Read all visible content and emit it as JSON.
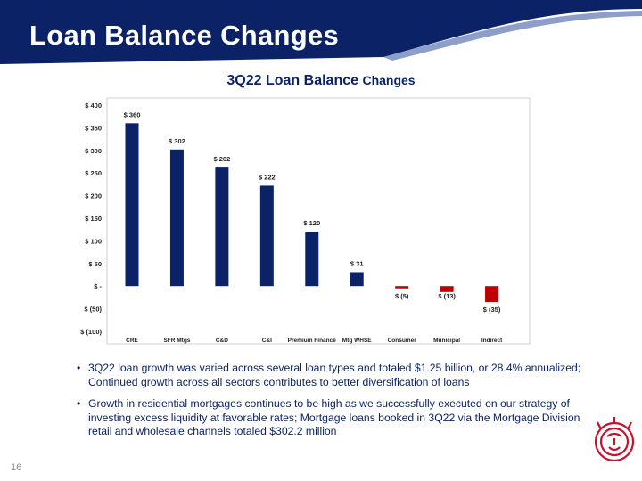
{
  "slide": {
    "title": "Loan Balance Changes",
    "page_number": "16"
  },
  "chart_title": {
    "main": "3Q22 Loan Balance",
    "sub": "Changes"
  },
  "chart_data": {
    "type": "bar",
    "title": "3Q22 Loan Balance Changes",
    "categories": [
      "CRE",
      "SFR Mtgs",
      "C&D",
      "C&I",
      "Premium Finance",
      "Mtg WHSE",
      "Consumer",
      "Municipal",
      "Indirect"
    ],
    "values": [
      360,
      302,
      262,
      222,
      120,
      31,
      -5,
      -13,
      -35
    ],
    "data_labels": [
      "$ 360",
      "$ 302",
      "$ 262",
      "$ 222",
      "$ 120",
      "$ 31",
      "$ (5)",
      "$ (13)",
      "$ (35)"
    ],
    "ylim": [
      -100,
      400
    ],
    "yticks": [
      400,
      350,
      300,
      250,
      200,
      150,
      100,
      50,
      0,
      -50,
      -100
    ],
    "ytick_labels": [
      "$ 400",
      "$ 350",
      "$ 300",
      "$ 250",
      "$ 200",
      "$ 150",
      "$ 100",
      "$ 50",
      "$ -",
      "$ (50)",
      "$ (100)"
    ],
    "xlabel": "",
    "ylabel": "",
    "grid": false,
    "colors": {
      "positive": "#0b2366",
      "negative": "#c00000"
    }
  },
  "bullets": [
    "3Q22 loan growth was varied across several loan types and totaled $1.25 billion, or 28.4% annualized; Continued growth across all sectors contributes to better diversification of loans",
    "Growth in residential mortgages continues to be high as we successfully executed on our strategy of investing excess liquidity at favorable rates; Mortgage loans booked in 3Q22 via the Mortgage Division retail and wholesale channels totaled $302.2 million"
  ],
  "bullet_marker": "•",
  "colors": {
    "brand_navy": "#0b2366",
    "brand_red": "#c8102e"
  },
  "icons": {
    "logo": "lion-head-icon"
  }
}
